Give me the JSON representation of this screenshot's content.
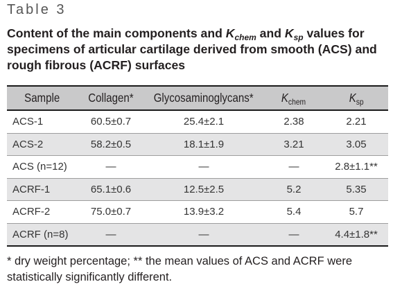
{
  "table_label": "Table 3",
  "caption": {
    "part1": "Content of the main components and ",
    "k_chem_letter": "K",
    "k_chem_sub": "chem",
    "and": " and ",
    "k_sp_letter": "K",
    "k_sp_sub": "sp",
    "part2": " values for specimens of articular cartilage derived from smooth (ACS) and rough fibrous (ACRF) surfaces"
  },
  "table": {
    "headers": {
      "sample": "Sample",
      "collagen": "Collagen*",
      "gag": "Glycosaminoglycans*",
      "kchem_letter": "K",
      "kchem_sub": "chem",
      "ksp_letter": "K",
      "ksp_sub": "sp"
    },
    "rows": [
      {
        "sample": "ACS-1",
        "collagen": "60.5±0.7",
        "gag": "25.4±2.1",
        "kchem": "2.38",
        "ksp": "2.21"
      },
      {
        "sample": "ACS-2",
        "collagen": "58.2±0.5",
        "gag": "18.1±1.9",
        "kchem": "3.21",
        "ksp": "3.05"
      },
      {
        "sample": "ACS (n=12)",
        "collagen": "—",
        "gag": "—",
        "kchem": "—",
        "ksp": "2.8±1.1**"
      },
      {
        "sample": "ACRF-1",
        "collagen": "65.1±0.6",
        "gag": "12.5±2.5",
        "kchem": "5.2",
        "ksp": "5.35"
      },
      {
        "sample": "ACRF-2",
        "collagen": "75.0±0.7",
        "gag": "13.9±3.2",
        "kchem": "5.4",
        "ksp": "5.7"
      },
      {
        "sample": "ACRF (n=8)",
        "collagen": "—",
        "gag": "—",
        "kchem": "—",
        "ksp": "4.4±1.8**"
      }
    ]
  },
  "footnote": "* dry weight percentage; ** the mean values of ACS and ACRF were statistically significantly different."
}
